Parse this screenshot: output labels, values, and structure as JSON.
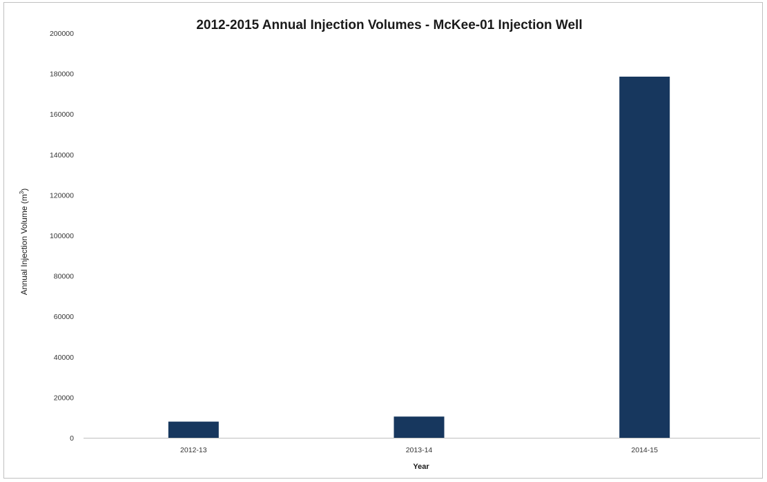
{
  "chart_data": {
    "type": "bar",
    "title": "2012-2015 Annual Injection Volumes - McKee-01 Injection Well",
    "xlabel": "Year",
    "ylabel": "Annual Injection Volume (m",
    "ylabel_sup": "3",
    "ylabel_close": ")",
    "categories": [
      "2012-13",
      "2013-14",
      "2014-15"
    ],
    "values": [
      8000,
      10500,
      178500
    ],
    "ylim": [
      0,
      200000
    ],
    "yticks": [
      "0",
      "20000",
      "40000",
      "60000",
      "80000",
      "100000",
      "120000",
      "140000",
      "160000",
      "180000",
      "200000"
    ],
    "grid": false,
    "legend": "none",
    "bar_color": "#17375e"
  }
}
